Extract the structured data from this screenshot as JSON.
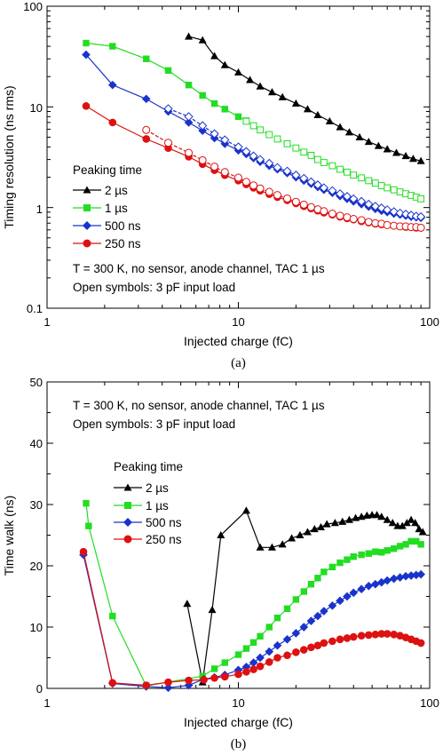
{
  "colors": {
    "2 µs": "#000000",
    "1 µs": "#22dd22",
    "500 ns": "#1a33cc",
    "250 ns": "#dd1111"
  },
  "chart_data": [
    {
      "type": "scatter",
      "caption": "(a)",
      "xlabel": "Injected charge (fC)",
      "ylabel": "Timing resolution (ns rms)",
      "xscale": "log",
      "yscale": "log",
      "xlim": [
        1,
        100
      ],
      "ylim": [
        0.1,
        100
      ],
      "xticks": [
        "1",
        "10",
        "100"
      ],
      "yticks": [
        "0.1",
        "1",
        "10",
        "100"
      ],
      "legend_title": "Peaking time",
      "legend_position": "left-middle",
      "annotations": [
        "T = 300 K, no sensor, anode channel, TAC 1 µs",
        "Open symbols: 3 pF input load"
      ],
      "series": [
        {
          "name": "2 µs",
          "marker": "triangle",
          "filled": true,
          "x": [
            5.5,
            6.5,
            7.5,
            8.5,
            10,
            11.5,
            13,
            15,
            17,
            20,
            23,
            26,
            30,
            34,
            38,
            43,
            48,
            54,
            60,
            67,
            75,
            82,
            90
          ],
          "y": [
            50,
            46,
            32,
            26,
            22,
            18.5,
            16,
            14,
            12.5,
            10.8,
            9.5,
            8.3,
            7.2,
            6.3,
            5.6,
            5.0,
            4.5,
            4.1,
            3.8,
            3.5,
            3.25,
            3.05,
            2.9
          ]
        },
        {
          "name": "1 µs",
          "marker": "square",
          "filled": true,
          "x": [
            1.6,
            2.2,
            3.3,
            4.3,
            5.5,
            6.5,
            7.5,
            8.5,
            10,
            11
          ],
          "y": [
            43,
            40,
            30,
            23,
            16.5,
            13,
            10.8,
            9.5,
            8.0,
            7.3
          ]
        },
        {
          "name": "1 µs 3 pF",
          "marker": "square",
          "filled": false,
          "x": [
            11,
            12,
            13,
            14.5,
            16,
            18,
            20,
            22,
            24,
            26,
            28,
            31,
            34,
            37,
            40,
            44,
            48,
            52,
            56,
            60,
            65,
            70,
            75,
            80,
            85,
            90
          ],
          "y": [
            7.2,
            6.5,
            5.9,
            5.3,
            4.8,
            4.3,
            3.9,
            3.55,
            3.3,
            3.0,
            2.8,
            2.6,
            2.4,
            2.25,
            2.1,
            1.97,
            1.85,
            1.75,
            1.65,
            1.57,
            1.5,
            1.43,
            1.37,
            1.32,
            1.27,
            1.22
          ]
        },
        {
          "name": "500 ns",
          "marker": "diamond",
          "filled": true,
          "x": [
            1.6,
            2.2,
            3.3,
            4.3,
            5.5,
            6.5,
            7.5,
            8.5,
            10,
            11,
            12,
            13,
            14.5,
            16,
            18,
            20,
            22,
            24,
            26,
            28,
            31,
            34,
            37,
            40,
            44,
            48,
            52,
            56,
            60,
            65,
            70,
            75,
            80,
            85,
            90
          ],
          "y": [
            33,
            16.5,
            12,
            9.0,
            7.0,
            5.8,
            4.9,
            4.3,
            3.7,
            3.4,
            3.1,
            2.85,
            2.6,
            2.4,
            2.2,
            2.0,
            1.85,
            1.72,
            1.6,
            1.5,
            1.4,
            1.3,
            1.22,
            1.15,
            1.08,
            1.02,
            0.97,
            0.93,
            0.9,
            0.87,
            0.85,
            0.83,
            0.81,
            0.8,
            0.79
          ]
        },
        {
          "name": "500 ns 3 pF",
          "marker": "diamond",
          "filled": false,
          "x": [
            4.3,
            5.5,
            6.5,
            7.5,
            8.5,
            10,
            11,
            12,
            13,
            14.5,
            16,
            18,
            20,
            22,
            24,
            26,
            28,
            31,
            34,
            37,
            40,
            44,
            48,
            52,
            56,
            60,
            65,
            70,
            75,
            80,
            85,
            90
          ],
          "y": [
            9.6,
            8.0,
            6.5,
            5.4,
            4.7,
            4.0,
            3.6,
            3.25,
            3.0,
            2.75,
            2.5,
            2.3,
            2.1,
            1.95,
            1.8,
            1.68,
            1.57,
            1.47,
            1.37,
            1.29,
            1.22,
            1.15,
            1.08,
            1.03,
            0.99,
            0.95,
            0.91,
            0.88,
            0.86,
            0.84,
            0.82,
            0.81
          ]
        },
        {
          "name": "250 ns",
          "marker": "circle",
          "filled": true,
          "x": [
            1.6,
            2.2,
            3.3,
            4.3,
            5.5,
            6.5,
            7.5,
            8.5,
            10,
            11,
            12,
            13,
            14.5,
            16,
            18,
            20,
            22,
            24,
            26,
            28,
            31,
            34,
            37,
            40,
            44,
            48,
            52,
            56,
            60,
            65,
            70,
            75,
            80,
            85,
            90
          ],
          "y": [
            10.2,
            7.0,
            4.8,
            3.9,
            3.2,
            2.7,
            2.35,
            2.1,
            1.85,
            1.7,
            1.57,
            1.47,
            1.36,
            1.27,
            1.18,
            1.1,
            1.03,
            0.98,
            0.93,
            0.89,
            0.85,
            0.81,
            0.78,
            0.76,
            0.73,
            0.71,
            0.69,
            0.68,
            0.67,
            0.66,
            0.65,
            0.64,
            0.64,
            0.63,
            0.63
          ]
        },
        {
          "name": "250 ns 3 pF",
          "marker": "circle",
          "filled": false,
          "x": [
            3.3,
            4.3,
            5.5,
            6.5,
            7.5,
            8.5,
            10,
            11,
            12,
            13,
            14.5,
            16,
            18,
            20,
            22,
            24,
            26,
            28,
            31,
            34,
            37,
            40,
            44,
            48,
            52,
            56,
            60,
            65,
            70,
            75,
            80,
            85,
            90
          ],
          "y": [
            5.9,
            4.4,
            3.5,
            2.95,
            2.55,
            2.25,
            1.98,
            1.8,
            1.66,
            1.55,
            1.43,
            1.33,
            1.23,
            1.14,
            1.07,
            1.01,
            0.96,
            0.92,
            0.87,
            0.83,
            0.8,
            0.77,
            0.75,
            0.72,
            0.7,
            0.69,
            0.67,
            0.66,
            0.65,
            0.65,
            0.64,
            0.64,
            0.63
          ]
        }
      ]
    },
    {
      "type": "scatter",
      "caption": "(b)",
      "xlabel": "Injected charge (fC)",
      "ylabel": "Time walk (ns)",
      "xscale": "log",
      "yscale": "linear",
      "xlim": [
        1,
        100
      ],
      "ylim": [
        0,
        50
      ],
      "xticks": [
        "1",
        "10",
        "100"
      ],
      "yticks": [
        "0",
        "10",
        "20",
        "30",
        "40",
        "50"
      ],
      "legend_title": "Peaking time",
      "legend_position": "left-middle",
      "annotations": [
        "T = 300 K, no sensor, anode channel, TAC 1 µs",
        "Open symbols: 3 pF input load"
      ],
      "series": [
        {
          "name": "2 µs",
          "marker": "triangle",
          "filled": true,
          "x": [
            5.4,
            6.5,
            7.3,
            8.1,
            11,
            13,
            15,
            17,
            19,
            21,
            23,
            25,
            27,
            29,
            32,
            35,
            38,
            41,
            44,
            47,
            50,
            53,
            56,
            60,
            64,
            68,
            72,
            76,
            80,
            84,
            88,
            92
          ],
          "y": [
            13.8,
            1.0,
            12.8,
            25,
            29,
            23,
            23,
            23.5,
            24.5,
            25,
            25.5,
            26,
            26.3,
            26.8,
            27,
            27.2,
            27.5,
            27.8,
            28,
            28.2,
            28.3,
            28.3,
            28,
            27.5,
            27,
            26.5,
            26.5,
            27,
            27.5,
            27,
            26,
            25.5
          ]
        },
        {
          "name": "1 µs",
          "marker": "square",
          "filled": true,
          "x": [
            1.6,
            1.65,
            2.2,
            3.3,
            6.5,
            7.5,
            8.5,
            10,
            11,
            12,
            13,
            14.5,
            16,
            18,
            20,
            22,
            24,
            26,
            28,
            31,
            34,
            37,
            40,
            44,
            48,
            52,
            56,
            60,
            65,
            70,
            75,
            80,
            85,
            90
          ],
          "y": [
            30.2,
            26.5,
            11.8,
            0.4,
            2.0,
            3.2,
            4.2,
            5.5,
            6.5,
            7.5,
            8.5,
            10,
            11.5,
            13,
            14.5,
            15.8,
            17,
            18,
            19,
            19.8,
            20.5,
            21,
            21.5,
            21.8,
            22,
            22.3,
            22.2,
            22.5,
            22.8,
            23.2,
            23.5,
            24,
            24,
            23.5
          ]
        },
        {
          "name": "500 ns",
          "marker": "diamond",
          "filled": true,
          "x": [
            1.55,
            2.2,
            3.3,
            4.3,
            5.5,
            6.6,
            7.5,
            8.5,
            10,
            11,
            12,
            13,
            14.5,
            16,
            18,
            20,
            22,
            24,
            26,
            28,
            31,
            34,
            37,
            40,
            44,
            48,
            52,
            56,
            60,
            65,
            70,
            75,
            80,
            85,
            90
          ],
          "y": [
            21.8,
            0.8,
            0.3,
            0.1,
            0.5,
            1.5,
            1.8,
            2.2,
            3.0,
            3.5,
            4.2,
            5.0,
            6.0,
            7.0,
            8.0,
            9.0,
            10.0,
            11.0,
            11.8,
            12.6,
            13.5,
            14.3,
            15.0,
            15.6,
            16.2,
            16.7,
            17.0,
            17.3,
            17.6,
            17.9,
            18.1,
            18.3,
            18.4,
            18.5,
            18.6
          ]
        },
        {
          "name": "250 ns",
          "marker": "circle",
          "filled": true,
          "x": [
            1.55,
            2.2,
            3.3,
            4.3,
            5.5,
            6.6,
            7.5,
            8.5,
            10,
            11,
            12,
            13,
            14.5,
            16,
            18,
            20,
            22,
            24,
            26,
            28,
            31,
            34,
            37,
            40,
            44,
            48,
            52,
            56,
            60,
            65,
            70,
            75,
            80,
            85,
            90
          ],
          "y": [
            22.3,
            0.9,
            0.5,
            1.0,
            1.3,
            1.4,
            1.7,
            1.9,
            2.3,
            2.7,
            3.1,
            3.6,
            4.3,
            5.0,
            5.4,
            5.9,
            6.3,
            6.7,
            7.0,
            7.4,
            7.7,
            8.0,
            8.2,
            8.4,
            8.6,
            8.7,
            8.8,
            8.9,
            8.9,
            8.8,
            8.6,
            8.3,
            8.0,
            7.7,
            7.4
          ]
        }
      ]
    }
  ]
}
